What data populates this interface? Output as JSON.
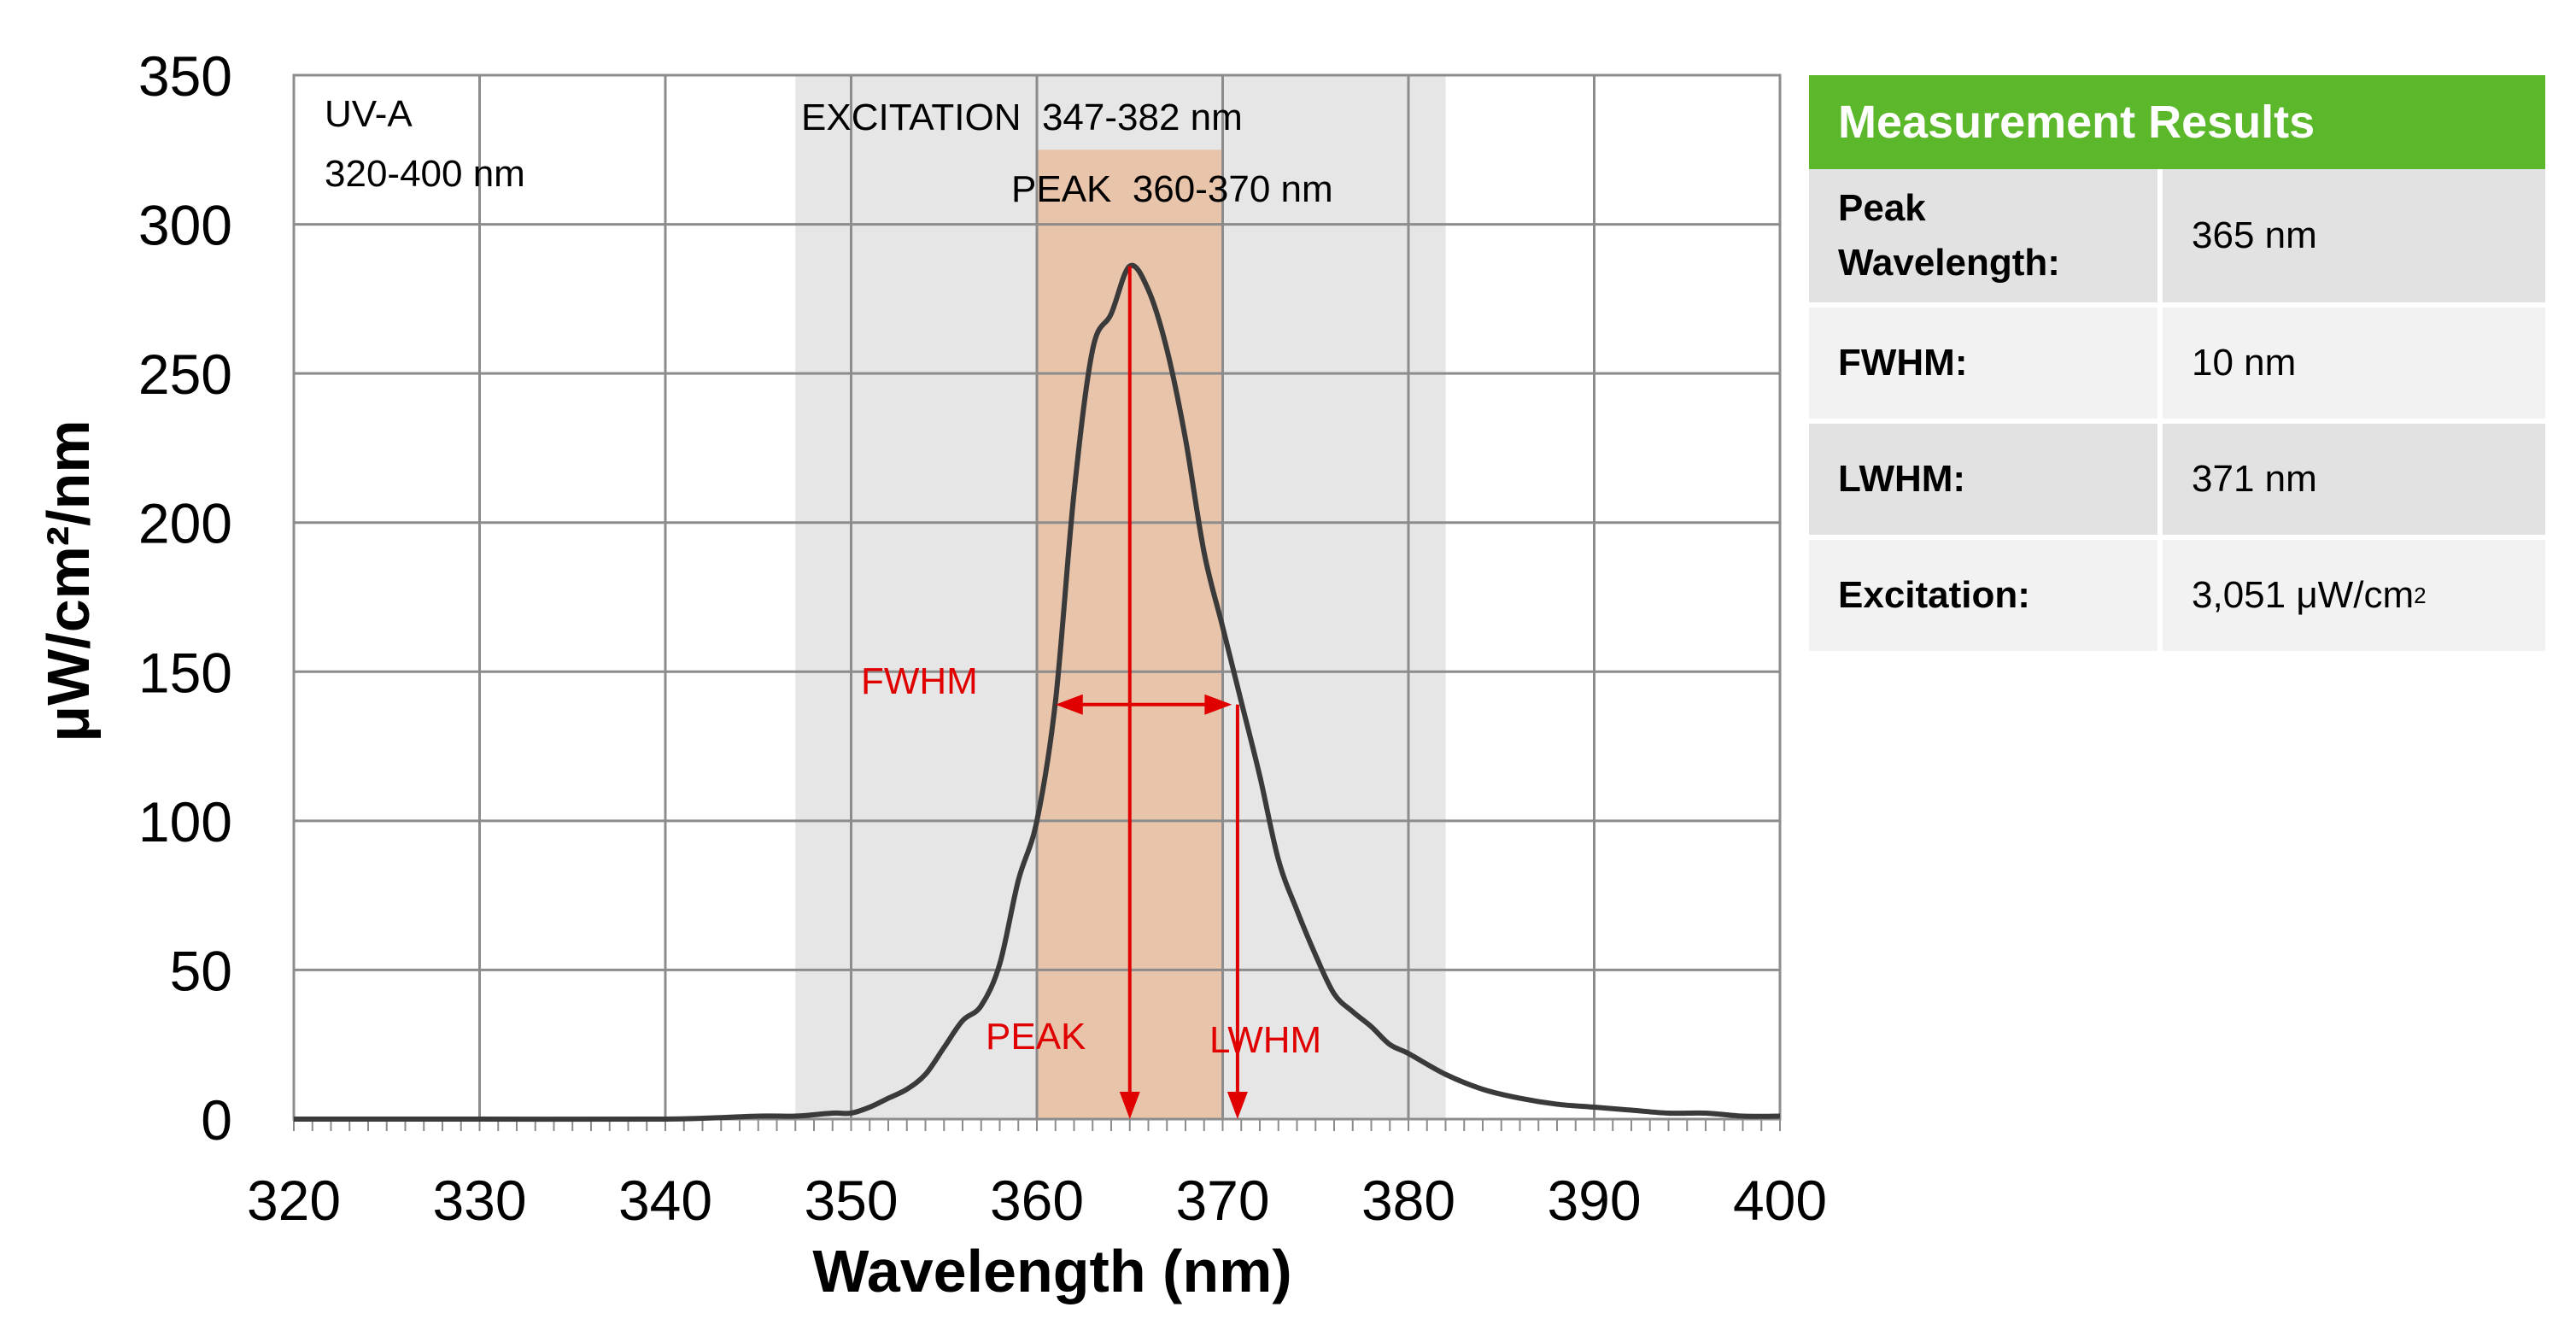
{
  "chart_data": {
    "type": "line",
    "xlabel": "Wavelength (nm)",
    "ylabel": "μW/cm²/nm",
    "xlim": [
      320,
      400
    ],
    "ylim": [
      0,
      350
    ],
    "xticks": [
      320,
      330,
      340,
      350,
      360,
      370,
      380,
      390,
      400
    ],
    "yticks": [
      0,
      50,
      100,
      150,
      200,
      250,
      300,
      350
    ],
    "grid": true,
    "series": [
      {
        "color": "#3a3a3a",
        "x": [
          320,
          330,
          340,
          345,
          347,
          349,
          350,
          351,
          352,
          353,
          354,
          355,
          356,
          357,
          358,
          359,
          360,
          361,
          362,
          363,
          364,
          365,
          366,
          367,
          368,
          369,
          370,
          371,
          372,
          373,
          374,
          375,
          376,
          377,
          378,
          379,
          380,
          382,
          384,
          386,
          388,
          390,
          392,
          394,
          396,
          398,
          400
        ],
        "y": [
          0,
          0,
          0,
          1,
          1,
          2,
          2,
          4,
          7,
          10,
          15,
          24,
          33,
          38,
          52,
          80,
          100,
          140,
          210,
          258,
          270,
          286,
          278,
          258,
          228,
          190,
          165,
          140,
          115,
          87,
          70,
          55,
          42,
          36,
          31,
          25,
          22,
          15,
          10,
          7,
          5,
          4,
          3,
          2,
          2,
          1,
          1
        ]
      }
    ],
    "bands": [
      {
        "label": "EXCITATION  347-382 nm",
        "x0": 347,
        "x1": 382,
        "color": "#e6e6e6"
      },
      {
        "label": "PEAK  360-370 nm",
        "x0": 360,
        "x1": 370,
        "color": "#e8c4ab"
      }
    ],
    "annotations": {
      "uva_line1": "UV-A",
      "uva_line2": "320-400 nm",
      "fwhm": "FWHM",
      "peak": "PEAK",
      "lwhm": "LWHM",
      "fwhm_from": 361,
      "fwhm_to": 370.5,
      "fwhm_level": 139,
      "peak_x": 365,
      "lwhm_x": 370.8,
      "arrow_color": "#e00000"
    }
  },
  "results": {
    "header": "Measurement Results",
    "header_color": "#5cb82b",
    "rows": [
      {
        "label_line1": "Peak",
        "label_line2": "Wavelength:",
        "value": "365 nm"
      },
      {
        "label": "FWHM:",
        "value": "10 nm"
      },
      {
        "label": "LWHM:",
        "value": "371 nm"
      },
      {
        "label": "Excitation:",
        "value_main": "3,051 μW/cm",
        "value_sup": "2"
      }
    ]
  }
}
